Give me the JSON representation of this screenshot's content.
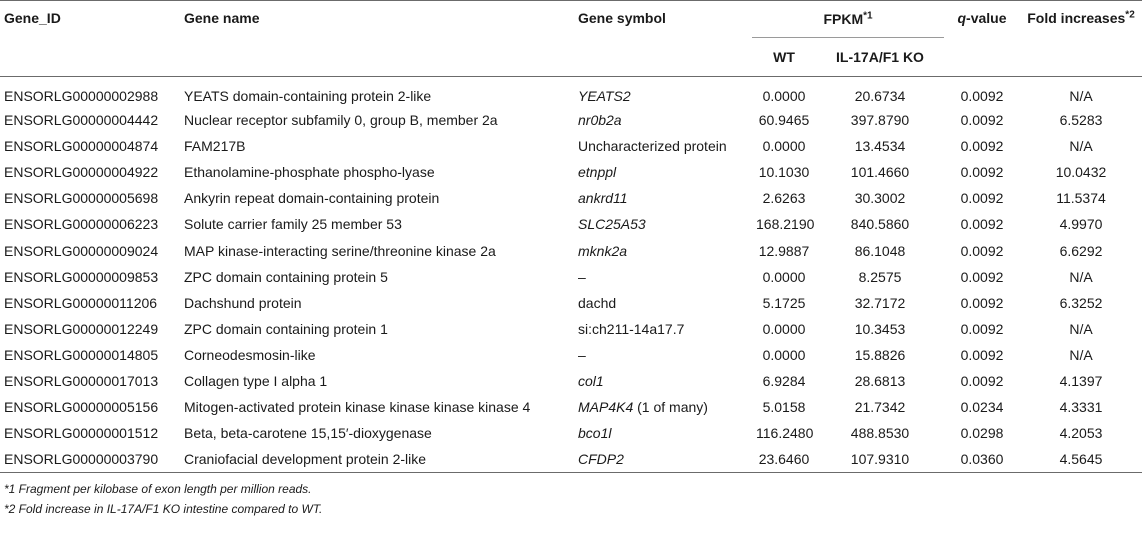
{
  "headers": {
    "gene_id": "Gene_ID",
    "gene_name": "Gene name",
    "gene_symbol": "Gene symbol",
    "fpkm": "FPKM",
    "fpkm_sup": "*1",
    "wt": "WT",
    "ko": "IL-17A/F1 KO",
    "q_value_q": "q",
    "q_value_rest": "-value",
    "fold": "Fold increases",
    "fold_sup": "*2"
  },
  "rows": [
    {
      "id": "ENSORLG00000002988",
      "name": "YEATS domain-containing protein 2-like",
      "symbol": "YEATS2",
      "symbol_extra": "",
      "symbol_italic": true,
      "wt": "0.0000",
      "ko": "20.6734",
      "q": "0.0092",
      "fold": "N/A"
    },
    {
      "id": "ENSORLG00000004442",
      "name": "Nuclear receptor subfamily 0, group B, member 2a",
      "symbol": "nr0b2a",
      "symbol_extra": "",
      "symbol_italic": true,
      "wt": "60.9465",
      "ko": "397.8790",
      "q": "0.0092",
      "fold": "6.5283"
    },
    {
      "id": "ENSORLG00000004874",
      "name": "FAM217B",
      "symbol": "Uncharacterized protein",
      "symbol_extra": "",
      "symbol_italic": false,
      "wt": "0.0000",
      "ko": "13.4534",
      "q": "0.0092",
      "fold": "N/A"
    },
    {
      "id": "ENSORLG00000004922",
      "name": "Ethanolamine-phosphate phospho-lyase",
      "symbol": "etnppl",
      "symbol_extra": "",
      "symbol_italic": true,
      "wt": "10.1030",
      "ko": "101.4660",
      "q": "0.0092",
      "fold": "10.0432"
    },
    {
      "id": "ENSORLG00000005698",
      "name": "Ankyrin repeat domain-containing protein",
      "symbol": "ankrd11",
      "symbol_extra": "",
      "symbol_italic": true,
      "wt": "2.6263",
      "ko": "30.3002",
      "q": "0.0092",
      "fold": "11.5374"
    },
    {
      "id": "ENSORLG00000006223",
      "name": "Solute carrier family 25 member 53",
      "symbol": "SLC25A53",
      "symbol_extra": "",
      "symbol_italic": true,
      "wt": "168.2190",
      "ko": "840.5860",
      "q": "0.0092",
      "fold": "4.9970"
    },
    {
      "id": "ENSORLG00000009024",
      "name": "MAP kinase-interacting serine/threonine kinase 2a",
      "symbol": "mknk2a",
      "symbol_extra": "",
      "symbol_italic": true,
      "wt": "12.9887",
      "ko": "86.1048",
      "q": "0.0092",
      "fold": "6.6292"
    },
    {
      "id": "ENSORLG00000009853",
      "name": "ZPC domain containing protein 5",
      "symbol": "–",
      "symbol_extra": "",
      "symbol_italic": false,
      "wt": "0.0000",
      "ko": "8.2575",
      "q": "0.0092",
      "fold": "N/A"
    },
    {
      "id": "ENSORLG00000011206",
      "name": "Dachshund protein",
      "symbol": "dachd",
      "symbol_extra": "",
      "symbol_italic": false,
      "wt": "5.1725",
      "ko": "32.7172",
      "q": "0.0092",
      "fold": "6.3252"
    },
    {
      "id": "ENSORLG00000012249",
      "name": "ZPC domain containing protein 1",
      "symbol": "si:ch211-14a17.7",
      "symbol_extra": "",
      "symbol_italic": false,
      "wt": "0.0000",
      "ko": "10.3453",
      "q": "0.0092",
      "fold": "N/A"
    },
    {
      "id": "ENSORLG00000014805",
      "name": "Corneodesmosin-like",
      "symbol": "–",
      "symbol_extra": "",
      "symbol_italic": false,
      "wt": "0.0000",
      "ko": "15.8826",
      "q": "0.0092",
      "fold": "N/A"
    },
    {
      "id": "ENSORLG00000017013",
      "name": "Collagen type I alpha 1",
      "symbol": "col1",
      "symbol_extra": "",
      "symbol_italic": true,
      "wt": "6.9284",
      "ko": "28.6813",
      "q": "0.0092",
      "fold": "4.1397"
    },
    {
      "id": "ENSORLG00000005156",
      "name": "Mitogen-activated protein kinase kinase kinase kinase 4",
      "symbol": "MAP4K4",
      "symbol_extra": " (1 of many)",
      "symbol_italic": true,
      "wt": "5.0158",
      "ko": "21.7342",
      "q": "0.0234",
      "fold": "4.3331"
    },
    {
      "id": "ENSORLG00000001512",
      "name": "Beta, beta-carotene 15,15′-dioxygenase",
      "symbol": "bco1l",
      "symbol_extra": "",
      "symbol_italic": true,
      "wt": "116.2480",
      "ko": "488.8530",
      "q": "0.0298",
      "fold": "4.2053"
    },
    {
      "id": "ENSORLG00000003790",
      "name": "Craniofacial development protein 2-like",
      "symbol": "CFDP2",
      "symbol_extra": "",
      "symbol_italic": true,
      "wt": "23.6460",
      "ko": "107.9310",
      "q": "0.0360",
      "fold": "4.5645"
    }
  ],
  "footnotes": [
    "*1 Fragment per kilobase of exon length per million reads.",
    "*2 Fold increase in IL-17A/F1 KO intestine compared to WT."
  ]
}
